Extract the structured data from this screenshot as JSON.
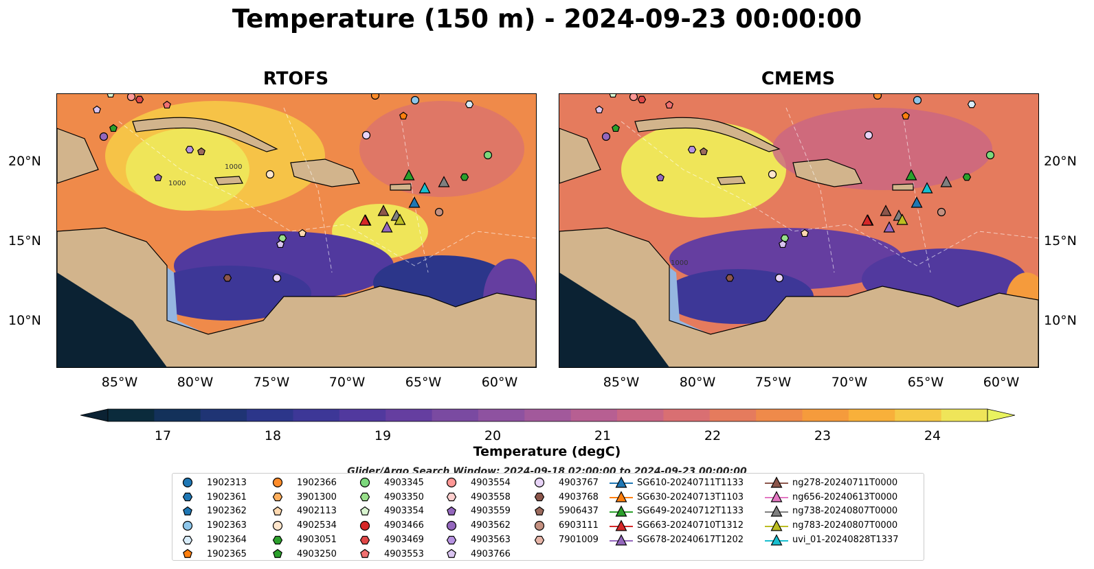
{
  "title": "Temperature (150 m) - 2024-09-23 00:00:00",
  "panels": [
    {
      "title": "RTOFS"
    },
    {
      "title": "CMEMS"
    }
  ],
  "lon_ticks": [
    "85°W",
    "80°W",
    "75°W",
    "70°W",
    "65°W",
    "60°W"
  ],
  "lat_ticks": [
    "20°N",
    "15°N",
    "10°N"
  ],
  "colorbar": {
    "label": "Temperature (degC)",
    "ticks": [
      "17",
      "18",
      "19",
      "20",
      "21",
      "22",
      "23",
      "24"
    ],
    "min": 16.5,
    "max": 24.5,
    "step": 0.5,
    "colors": [
      "#0b2b3c",
      "#13315a",
      "#1f3474",
      "#2c368a",
      "#3d3797",
      "#51399e",
      "#653ea0",
      "#7a4aa1",
      "#8e52a0",
      "#a2599b",
      "#b75f92",
      "#c96684",
      "#d96f72",
      "#e57b5d",
      "#ef8a4a",
      "#f59b3c",
      "#f8b03a",
      "#f6c947",
      "#efe559"
    ],
    "overflow_color": "#e9f35f",
    "underflow_color": "#0b2233"
  },
  "contour_labels": [
    "1000",
    "1000",
    "1000"
  ],
  "legend": {
    "title": "Glider/Argo Search Window: 2024-09-18 02:00:00 to 2024-09-23 00:00:00",
    "argo": [
      {
        "id": "1902313",
        "marker": "circle",
        "color": "#1f77b4"
      },
      {
        "id": "1902361",
        "marker": "hexagon",
        "color": "#1f77b4"
      },
      {
        "id": "1902362",
        "marker": "pentagon",
        "color": "#1f77b4"
      },
      {
        "id": "1902363",
        "marker": "circle",
        "color": "#8ec6ea"
      },
      {
        "id": "1902364",
        "marker": "hexagon",
        "color": "#d8ecfa"
      },
      {
        "id": "1902365",
        "marker": "pentagon",
        "color": "#ff7f0e"
      },
      {
        "id": "1902366",
        "marker": "circle",
        "color": "#ff8c2a"
      },
      {
        "id": "3901300",
        "marker": "hexagon",
        "color": "#ffae5c"
      },
      {
        "id": "4902113",
        "marker": "pentagon",
        "color": "#ffd9b0"
      },
      {
        "id": "4902534",
        "marker": "circle",
        "color": "#ffe6cc"
      },
      {
        "id": "4903051",
        "marker": "hexagon",
        "color": "#2ca02c"
      },
      {
        "id": "4903250",
        "marker": "pentagon",
        "color": "#2ca02c"
      },
      {
        "id": "4903345",
        "marker": "circle",
        "color": "#7cd87c"
      },
      {
        "id": "4903350",
        "marker": "hexagon",
        "color": "#98df8a"
      },
      {
        "id": "4903354",
        "marker": "pentagon",
        "color": "#d9f5d0"
      },
      {
        "id": "4903466",
        "marker": "circle",
        "color": "#d62728"
      },
      {
        "id": "4903469",
        "marker": "hexagon",
        "color": "#e04848"
      },
      {
        "id": "4903553",
        "marker": "pentagon",
        "color": "#f07070"
      },
      {
        "id": "4903554",
        "marker": "circle",
        "color": "#ff9896"
      },
      {
        "id": "4903558",
        "marker": "hexagon",
        "color": "#ffcfce"
      },
      {
        "id": "4903559",
        "marker": "pentagon",
        "color": "#9467bd"
      },
      {
        "id": "4903562",
        "marker": "circle",
        "color": "#9467bd"
      },
      {
        "id": "4903563",
        "marker": "hexagon",
        "color": "#b692e0"
      },
      {
        "id": "4903766",
        "marker": "pentagon",
        "color": "#d9c4f0"
      },
      {
        "id": "4903767",
        "marker": "circle",
        "color": "#e8d4f7"
      },
      {
        "id": "4903768",
        "marker": "hexagon",
        "color": "#8c564b"
      },
      {
        "id": "5906437",
        "marker": "pentagon",
        "color": "#9c6b5e"
      },
      {
        "id": "6903111",
        "marker": "circle",
        "color": "#c49080"
      },
      {
        "id": "7901009",
        "marker": "hexagon",
        "color": "#e6b5a8"
      }
    ],
    "gliders": [
      {
        "id": "SG610-20240711T1133",
        "color": "#1f77b4"
      },
      {
        "id": "SG630-20240713T1103",
        "color": "#ff7f0e"
      },
      {
        "id": "SG649-20240712T1133",
        "color": "#2ca02c"
      },
      {
        "id": "SG663-20240710T1312",
        "color": "#d62728"
      },
      {
        "id": "SG678-20240617T1202",
        "color": "#9467bd"
      },
      {
        "id": "ng278-20240711T0000",
        "color": "#8c564b"
      },
      {
        "id": "ng656-20240613T0000",
        "color": "#e377c2"
      },
      {
        "id": "ng738-20240807T0000",
        "color": "#7f7f7f"
      },
      {
        "id": "ng783-20240807T0000",
        "color": "#bcbd22"
      },
      {
        "id": "uvi_01-20240828T1337",
        "color": "#17becf"
      }
    ]
  }
}
